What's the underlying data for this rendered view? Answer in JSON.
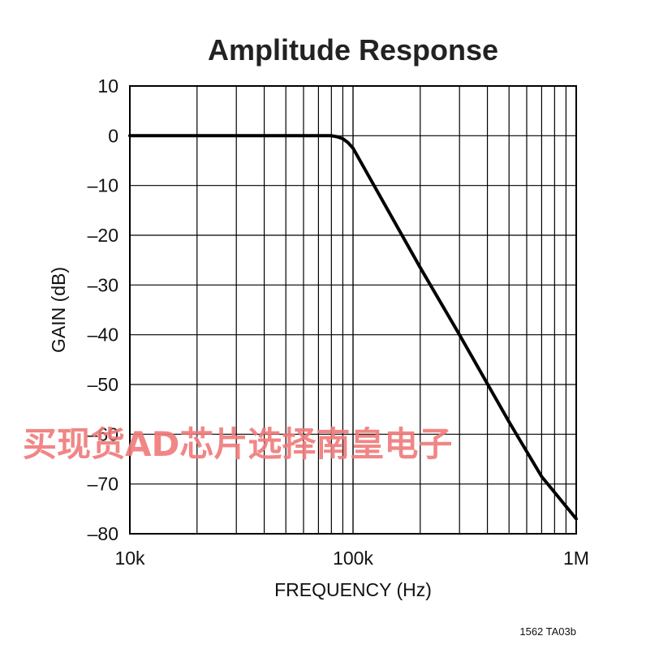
{
  "chart_data": {
    "type": "line",
    "title": "Amplitude Response",
    "xlabel": "FREQUENCY (Hz)",
    "ylabel": "GAIN (dB)",
    "x_scale": "log",
    "xlim": [
      10000,
      1000000
    ],
    "ylim": [
      -80,
      10
    ],
    "x_tick_values": [
      10000,
      100000,
      1000000
    ],
    "x_tick_labels": [
      "10k",
      "100k",
      "1M"
    ],
    "y_tick_values": [
      10,
      0,
      -10,
      -20,
      -30,
      -40,
      -50,
      -60,
      -70,
      -80
    ],
    "y_tick_labels": [
      "10",
      "0",
      "–10",
      "–20",
      "–30",
      "–40",
      "–50",
      "–60",
      "–70",
      "–80"
    ],
    "grid": true,
    "legend": "none",
    "series": [
      {
        "color": "#000000",
        "x": [
          10000,
          20000,
          40000,
          70000,
          80000,
          85000,
          90000,
          95000,
          100000,
          200000,
          300000,
          500000,
          700000,
          1000000
        ],
        "y": [
          0,
          0,
          0,
          0,
          0,
          -0.2,
          -0.6,
          -1.4,
          -2.5,
          -26.5,
          -40,
          -57.5,
          -68.5,
          -77
        ]
      }
    ]
  },
  "footnote": "1562 TA03b",
  "watermark": "买现货AD芯片选择南皇电子"
}
